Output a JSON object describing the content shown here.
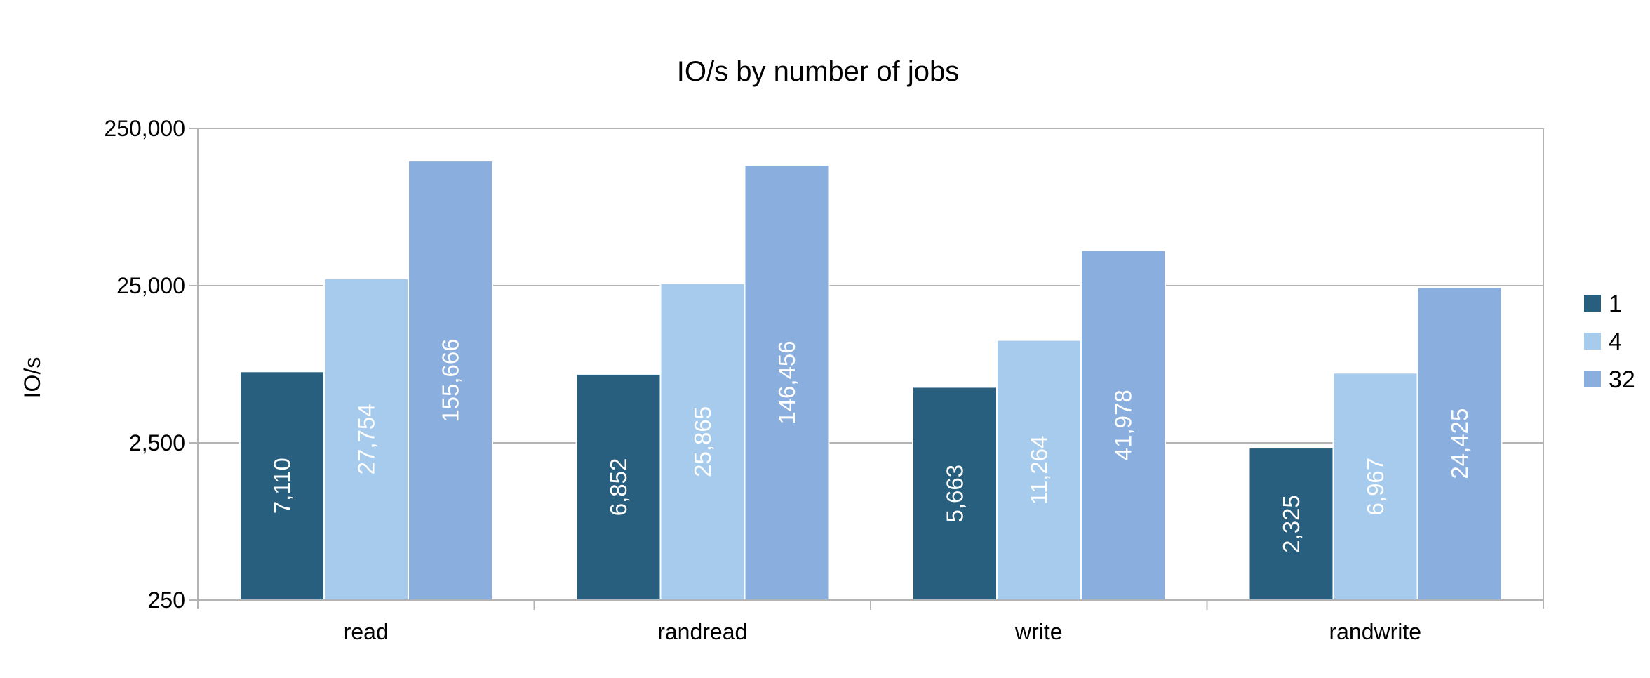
{
  "chart_data": {
    "type": "bar",
    "title": "IO/s by number of jobs",
    "xlabel": "",
    "ylabel": "IO/s",
    "yscale": "log",
    "ylim": [
      250,
      250000
    ],
    "yticks": [
      250,
      2500,
      25000,
      250000
    ],
    "ytick_labels": [
      "250",
      "2,500",
      "25,000",
      "250,000"
    ],
    "grid": "horizontal",
    "legend_position": "right",
    "categories": [
      "read",
      "randread",
      "write",
      "randwrite"
    ],
    "series": [
      {
        "name": "1",
        "color": "#285f7f",
        "values": [
          7110,
          6852,
          5663,
          2325
        ],
        "labels": [
          "7,110",
          "6,852",
          "5,663",
          "2,325"
        ]
      },
      {
        "name": "4",
        "color": "#a6cbec",
        "values": [
          27754,
          25865,
          11264,
          6967
        ],
        "labels": [
          "27,754",
          "25,865",
          "11,264",
          "6,967"
        ]
      },
      {
        "name": "32",
        "color": "#8aaedd",
        "values": [
          155666,
          146456,
          41978,
          24425
        ],
        "labels": [
          "155,666",
          "146,456",
          "41,978",
          "24,425"
        ]
      }
    ]
  }
}
